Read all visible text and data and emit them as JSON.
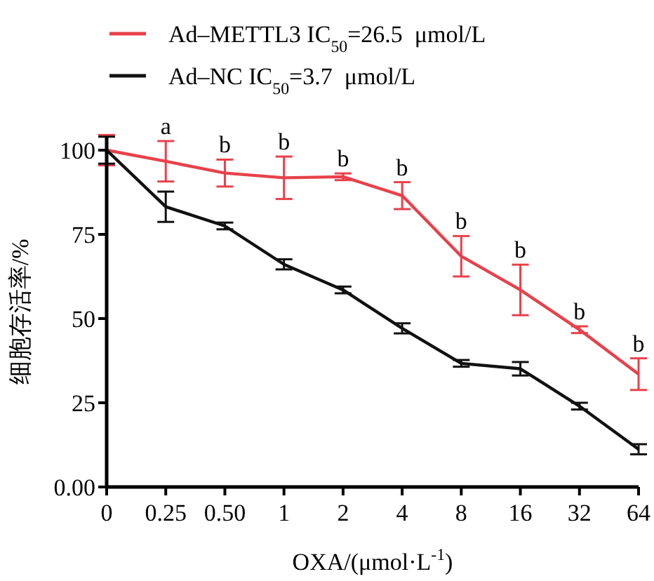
{
  "chart_data": {
    "type": "line",
    "xlabel": "OXA/(μmol·L$^{-1}$)",
    "ylabel": "细胞存活率/%",
    "categories": [
      "0",
      "0.25",
      "0.50",
      "1",
      "2",
      "4",
      "8",
      "16",
      "32",
      "64"
    ],
    "series": [
      {
        "name": "Ad–METTL3 IC$_{50}$=26.5  μmol/L",
        "color": "#e8414a",
        "values": [
          100,
          96.7,
          93.2,
          91.8,
          92.1,
          86.5,
          68.5,
          58.5,
          46.7,
          33.5
        ],
        "errors": [
          4.5,
          6,
          4,
          6.3,
          1,
          4,
          6,
          7.5,
          1,
          4.7
        ]
      },
      {
        "name": "Ad–NC IC$_{50}$=3.7  μmol/L",
        "color": "#111111",
        "values": [
          100,
          83.2,
          77.5,
          66.1,
          58.5,
          47.1,
          36.7,
          35.1,
          24,
          11.2
        ],
        "errors": [
          4,
          4.5,
          1,
          1.5,
          1,
          1.5,
          1,
          2,
          1,
          1.5
        ]
      }
    ],
    "ylim": [
      0,
      104
    ],
    "yticks": [
      {
        "value": 0,
        "label": "0.00"
      },
      25,
      50,
      75,
      100
    ],
    "grid": false,
    "legend": "top left",
    "marker": "none",
    "line_style": "solid",
    "annotations": [
      {
        "text": "a",
        "x": "0.25",
        "y": 102.7
      },
      {
        "text": "b",
        "x": "0.50",
        "y": 97.2
      },
      {
        "text": "b",
        "x": "1",
        "y": 98.1
      },
      {
        "text": "b",
        "x": "2",
        "y": 93.1
      },
      {
        "text": "b",
        "x": "4",
        "y": 90.5
      },
      {
        "text": "b",
        "x": "8",
        "y": 74.5
      },
      {
        "text": "b",
        "x": "16",
        "y": 66
      },
      {
        "text": "b",
        "x": "32",
        "y": 47.7
      },
      {
        "text": "b",
        "x": "64",
        "y": 38.2
      }
    ]
  }
}
